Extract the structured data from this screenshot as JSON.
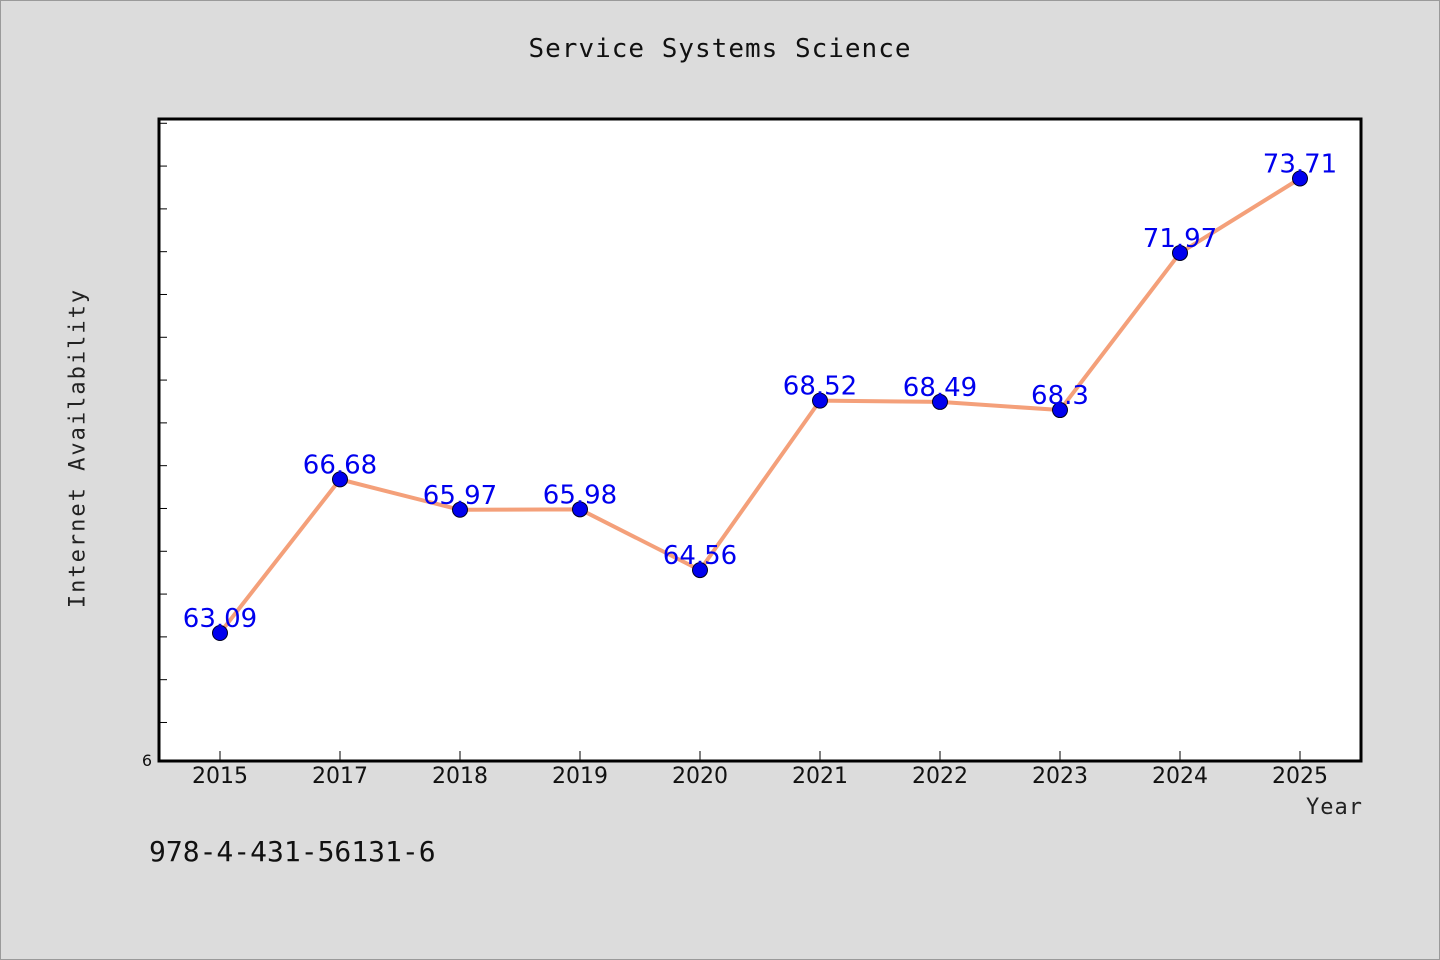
{
  "chart_data": {
    "type": "line",
    "title": "Service Systems Science",
    "xlabel": "Year",
    "ylabel": "Internet Availability",
    "categories": [
      "2015",
      "2017",
      "2018",
      "2019",
      "2020",
      "2021",
      "2022",
      "2023",
      "2024",
      "2025"
    ],
    "series": [
      {
        "values": [
          63.09,
          66.68,
          65.97,
          65.98,
          64.56,
          68.52,
          68.49,
          68.3,
          71.97,
          73.71
        ],
        "labels": [
          "63.09",
          "66.68",
          "65.97",
          "65.98",
          "64.56",
          "68.52",
          "68.49",
          "68.3",
          "71.97",
          "73.71"
        ],
        "line_color": "#f4a07a",
        "marker_color": "#0000ee"
      }
    ],
    "y_tick_labels": [
      "6"
    ],
    "ylim": [
      60.1,
      75.1
    ],
    "grid": false,
    "legend": false
  },
  "footer": {
    "isbn": "978-4-431-56131-6"
  }
}
